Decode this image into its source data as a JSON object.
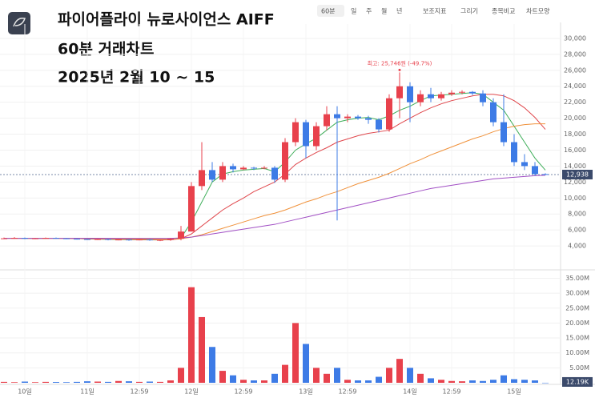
{
  "toolbar": {
    "interval": "60분",
    "periods": [
      "일",
      "주",
      "월",
      "년"
    ],
    "tools": [
      "보조지표",
      "그리기",
      "종목비교",
      "차트모양"
    ]
  },
  "chart_data": {
    "type": "candlestick",
    "title_lines": [
      "파이어플라이 뉴로사이언스 AIFF",
      "60분 거래차트",
      "2025년 2월 10 ~ 15"
    ],
    "annotation": "최고: 25,746원 (-49.7%)",
    "categories": [
      null,
      null,
      "10일",
      null,
      null,
      null,
      null,
      null,
      "11일",
      null,
      null,
      null,
      null,
      "12:59",
      null,
      null,
      null,
      null,
      "12일",
      null,
      null,
      null,
      null,
      "12:59",
      null,
      null,
      null,
      null,
      null,
      "13일",
      null,
      null,
      null,
      "12:59",
      null,
      null,
      null,
      null,
      null,
      "14일",
      null,
      null,
      null,
      "12:59",
      null,
      null,
      null,
      null,
      null,
      "15일",
      null,
      null,
      null
    ],
    "open": [
      4900,
      4950,
      5000,
      4900,
      4950,
      5000,
      4950,
      4900,
      4850,
      4800,
      4850,
      4750,
      4800,
      4750,
      4800,
      4700,
      4750,
      4900,
      5800,
      11500,
      13500,
      12300,
      14000,
      13600,
      13800,
      13700,
      13800,
      12300,
      17000,
      19500,
      16500,
      19000,
      20500,
      20000,
      20200,
      20000,
      19800,
      18600,
      22500,
      24000,
      22000,
      23000,
      22500,
      23000,
      23200,
      23300,
      23100,
      22000,
      19500,
      17000,
      14500,
      14000,
      13000
    ],
    "high": [
      5050,
      5100,
      5050,
      5000,
      5050,
      5050,
      5000,
      4950,
      4900,
      4900,
      4900,
      4850,
      4850,
      4850,
      4850,
      4800,
      5000,
      6500,
      12000,
      17000,
      14500,
      14500,
      14300,
      14000,
      13900,
      14000,
      14000,
      17500,
      20000,
      19800,
      19500,
      21500,
      21500,
      20500,
      20400,
      20300,
      20000,
      23000,
      25746,
      24500,
      23500,
      23800,
      23300,
      23500,
      23500,
      23400,
      23500,
      22500,
      23000,
      18000,
      15500,
      14500,
      13100
    ],
    "low": [
      4850,
      4900,
      4850,
      4850,
      4900,
      4900,
      4850,
      4800,
      4750,
      4750,
      4700,
      4700,
      4650,
      4700,
      4650,
      4600,
      4650,
      4700,
      5800,
      11000,
      12000,
      12000,
      13200,
      13500,
      13500,
      13600,
      11900,
      12000,
      16500,
      15000,
      16000,
      18500,
      7200,
      19500,
      19800,
      19300,
      18200,
      18300,
      20000,
      19500,
      21500,
      22000,
      22200,
      22800,
      23000,
      22900,
      21500,
      19000,
      16500,
      14000,
      13500,
      12800,
      12900
    ],
    "close": [
      4950,
      5000,
      4900,
      4950,
      5000,
      4950,
      4900,
      4850,
      4800,
      4850,
      4750,
      4800,
      4750,
      4800,
      4700,
      4750,
      4900,
      5800,
      11500,
      13500,
      12300,
      14000,
      13600,
      13800,
      13700,
      13800,
      12300,
      17000,
      19500,
      16500,
      19000,
      20500,
      20000,
      20200,
      20000,
      19800,
      18600,
      22500,
      24000,
      22000,
      23000,
      22500,
      23000,
      23200,
      23300,
      23100,
      22000,
      19500,
      17000,
      14500,
      14000,
      13000,
      12938
    ],
    "up_color": "#e8414c",
    "down_color": "#3d7be6",
    "moving_averages": [
      {
        "color": "#3fae5a",
        "values": [
          4950,
          4960,
          4950,
          4940,
          4950,
          4960,
          4950,
          4920,
          4880,
          4850,
          4820,
          4800,
          4790,
          4780,
          4760,
          4750,
          4780,
          5000,
          7000,
          9500,
          12000,
          13000,
          13300,
          13500,
          13600,
          13700,
          13300,
          14500,
          16000,
          16800,
          17500,
          18500,
          19500,
          19800,
          20000,
          20100,
          19800,
          20300,
          21000,
          21500,
          22200,
          22800,
          22900,
          23000,
          23100,
          23200,
          23000,
          22000,
          21000,
          19000,
          17000,
          15000,
          13500
        ]
      },
      {
        "color": "#e0474c",
        "values": [
          4950,
          4950,
          4950,
          4950,
          4950,
          4950,
          4940,
          4920,
          4900,
          4880,
          4860,
          4840,
          4820,
          4800,
          4790,
          4780,
          4780,
          4900,
          5500,
          6500,
          7500,
          8500,
          9300,
          10000,
          10800,
          11400,
          12000,
          13000,
          14200,
          15000,
          15700,
          16300,
          17000,
          17400,
          17800,
          18100,
          18300,
          18500,
          19300,
          20000,
          20700,
          21300,
          21800,
          22200,
          22500,
          22800,
          23000,
          23000,
          22800,
          22200,
          21300,
          20100,
          18600
        ]
      },
      {
        "color": "#f0913a",
        "values": [
          4950,
          4950,
          4950,
          4950,
          4950,
          4950,
          4950,
          4950,
          4950,
          4950,
          4930,
          4900,
          4880,
          4860,
          4850,
          4840,
          4840,
          4900,
          5100,
          5400,
          5800,
          6200,
          6600,
          7000,
          7400,
          7800,
          8100,
          8500,
          9000,
          9500,
          9900,
          10400,
          10800,
          11300,
          11800,
          12200,
          12600,
          13100,
          13700,
          14300,
          14800,
          15400,
          15900,
          16400,
          16900,
          17400,
          17800,
          18300,
          18700,
          19000,
          19200,
          19300,
          19300
        ]
      },
      {
        "color": "#a14fc4",
        "values": [
          4950,
          4950,
          4950,
          4950,
          4950,
          4950,
          4950,
          4950,
          4950,
          4950,
          4950,
          4950,
          4950,
          4950,
          4950,
          4950,
          4950,
          5000,
          5100,
          5300,
          5500,
          5700,
          5900,
          6100,
          6300,
          6500,
          6700,
          7000,
          7300,
          7600,
          7900,
          8200,
          8500,
          8800,
          9100,
          9400,
          9700,
          10000,
          10300,
          10600,
          10900,
          11200,
          11400,
          11600,
          11800,
          12000,
          12200,
          12400,
          12500,
          12600,
          12700,
          12800,
          12850
        ]
      }
    ],
    "last_price": {
      "value": 12938,
      "label": "12,938"
    },
    "ylim": [
      1200,
      31800
    ],
    "yticks": [
      {
        "value": 4000,
        "label": "4,000"
      },
      {
        "value": 6000,
        "label": "6,000"
      },
      {
        "value": 8000,
        "label": "8,000"
      },
      {
        "value": 10000,
        "label": "10,000"
      },
      {
        "value": 12000,
        "label": "12,000"
      },
      {
        "value": 14000,
        "label": "14,000"
      },
      {
        "value": 16000,
        "label": "16,000"
      },
      {
        "value": 18000,
        "label": "18,000"
      },
      {
        "value": 20000,
        "label": "20,000"
      },
      {
        "value": 22000,
        "label": "22,000"
      },
      {
        "value": 24000,
        "label": "24,000"
      },
      {
        "value": 26000,
        "label": "26,000"
      },
      {
        "value": 28000,
        "label": "28,000"
      },
      {
        "value": 30000,
        "label": "30,000"
      }
    ],
    "grid": true,
    "volume": {
      "values": [
        300000,
        200000,
        400000,
        200000,
        300000,
        250000,
        200000,
        300000,
        500000,
        400000,
        300000,
        600000,
        500000,
        300000,
        400000,
        300000,
        800000,
        5000000,
        32000000,
        22000000,
        12000000,
        4000000,
        2500000,
        1000000,
        800000,
        800000,
        3000000,
        6000000,
        20000000,
        13000000,
        5000000,
        3000000,
        5000000,
        1000000,
        800000,
        800000,
        2000000,
        5000000,
        8000000,
        5000000,
        3000000,
        1500000,
        1000000,
        600000,
        500000,
        800000,
        600000,
        1000000,
        2500000,
        1200000,
        1000000,
        800000,
        12190
      ],
      "ylim": [
        0,
        37000000
      ],
      "yticks": [
        {
          "value": 5000000,
          "label": "5.00M"
        },
        {
          "value": 10000000,
          "label": "10.00M"
        },
        {
          "value": 15000000,
          "label": "15.00M"
        },
        {
          "value": 20000000,
          "label": "20.00M"
        },
        {
          "value": 25000000,
          "label": "25.00M"
        },
        {
          "value": 30000000,
          "label": "30.00M"
        },
        {
          "value": 35000000,
          "label": "35.00M"
        }
      ],
      "last": {
        "value": 12190,
        "label": "12.19K"
      }
    }
  }
}
